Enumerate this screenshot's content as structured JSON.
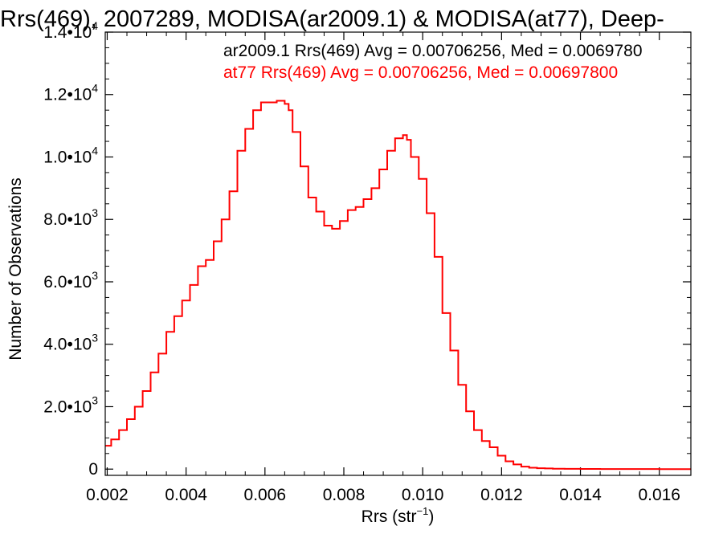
{
  "chart_data": {
    "type": "line",
    "title": "Rrs(469), 2007289, MODISA(ar2009.1) & MODISA(at77), Deep-",
    "xlabel": "Rrs (str",
    "xlabel_sup": "−1",
    "xlabel_close": ")",
    "ylabel": "Number of Observations",
    "xlim": [
      0.00195,
      0.0168
    ],
    "ylim": [
      -200,
      14000
    ],
    "x_ticks": [
      {
        "value": 0.002,
        "label": "0.002"
      },
      {
        "value": 0.004,
        "label": "0.004"
      },
      {
        "value": 0.006,
        "label": "0.006"
      },
      {
        "value": 0.008,
        "label": "0.008"
      },
      {
        "value": 0.01,
        "label": "0.010"
      },
      {
        "value": 0.012,
        "label": "0.012"
      },
      {
        "value": 0.014,
        "label": "0.014"
      },
      {
        "value": 0.016,
        "label": "0.016"
      }
    ],
    "y_ticks": [
      {
        "value": 0,
        "mant": "0",
        "exp": ""
      },
      {
        "value": 2000,
        "mant": "2.0•10",
        "exp": "3"
      },
      {
        "value": 4000,
        "mant": "4.0•10",
        "exp": "3"
      },
      {
        "value": 6000,
        "mant": "6.0•10",
        "exp": "3"
      },
      {
        "value": 8000,
        "mant": "8.0•10",
        "exp": "3"
      },
      {
        "value": 10000,
        "mant": "1.0•10",
        "exp": "4"
      },
      {
        "value": 12000,
        "mant": "1.2•10",
        "exp": "4"
      },
      {
        "value": 14000,
        "mant": "1.4•10",
        "exp": "4"
      }
    ],
    "legend": [
      {
        "text": "ar2009.1 Rrs(469) Avg = 0.00706256, Med = 0.0069780",
        "color": "#000000"
      },
      {
        "text": "at77 Rrs(469) Avg = 0.00706256, Med = 0.00697800",
        "color": "#ff0000"
      }
    ],
    "series": [
      {
        "color": "#ff0000",
        "x": [
          0.00195,
          0.0021,
          0.0023,
          0.0025,
          0.0027,
          0.0029,
          0.0031,
          0.0033,
          0.0035,
          0.0037,
          0.0039,
          0.0041,
          0.0043,
          0.0045,
          0.0047,
          0.0049,
          0.0051,
          0.0053,
          0.0055,
          0.0057,
          0.0059,
          0.0061,
          0.0063,
          0.0065,
          0.0066,
          0.0067,
          0.0069,
          0.0071,
          0.0073,
          0.0075,
          0.0077,
          0.0079,
          0.0081,
          0.0083,
          0.0085,
          0.0087,
          0.0089,
          0.0091,
          0.0093,
          0.0095,
          0.0096,
          0.0097,
          0.0099,
          0.0101,
          0.0103,
          0.0105,
          0.0107,
          0.0109,
          0.0111,
          0.0113,
          0.0115,
          0.0117,
          0.0119,
          0.0121,
          0.0123,
          0.0125,
          0.0127,
          0.0129,
          0.0131,
          0.0133,
          0.0136,
          0.014,
          0.0145,
          0.015,
          0.0155,
          0.016,
          0.0168
        ],
        "y": [
          750,
          950,
          1250,
          1600,
          2000,
          2500,
          3100,
          3700,
          4400,
          4900,
          5400,
          5900,
          6500,
          6700,
          7300,
          8000,
          8900,
          10200,
          10900,
          11500,
          11750,
          11750,
          11800,
          11700,
          11500,
          10800,
          9700,
          8700,
          8250,
          7800,
          7700,
          7950,
          8300,
          8400,
          8650,
          9000,
          9600,
          10200,
          10600,
          10700,
          10550,
          10000,
          9300,
          8200,
          6800,
          5000,
          3800,
          2700,
          1850,
          1250,
          900,
          700,
          430,
          250,
          150,
          80,
          45,
          30,
          20,
          14,
          9,
          5,
          3,
          2,
          2,
          1,
          0
        ]
      }
    ]
  }
}
